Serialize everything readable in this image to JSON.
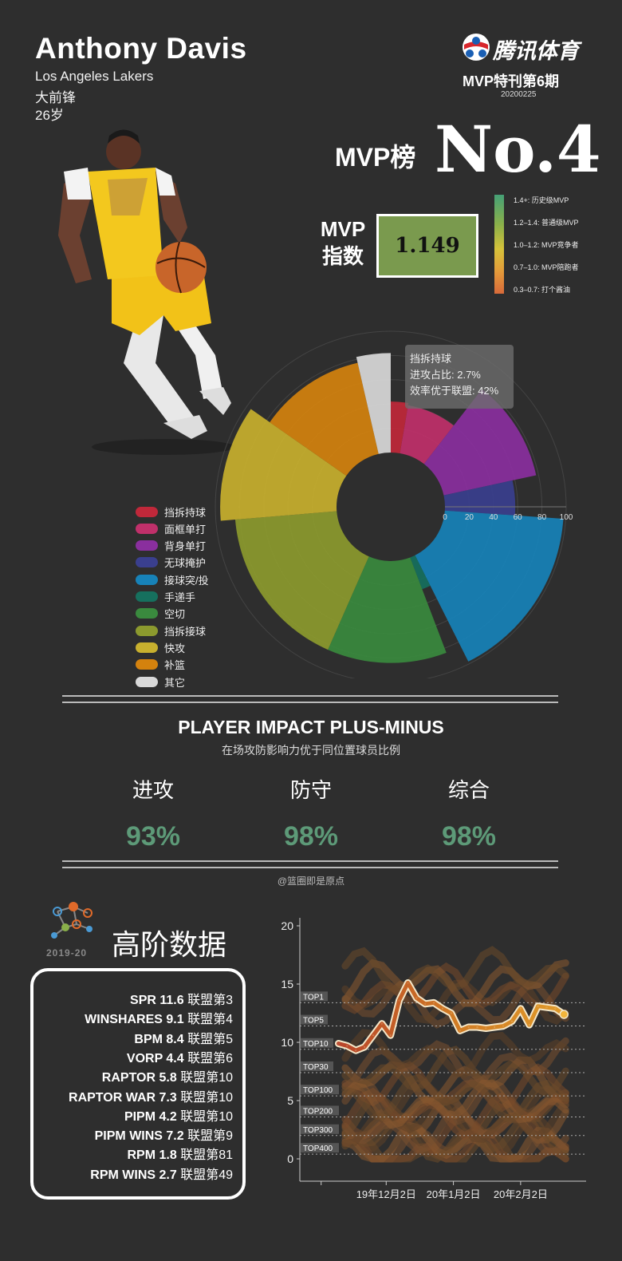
{
  "header": {
    "player_name": "Anthony Davis",
    "team": "Los Angeles Lakers",
    "position": "大前锋",
    "age": "26岁",
    "brand": "腾讯体育",
    "issue": "MVP特刊第6期",
    "date": "20200225"
  },
  "mvp": {
    "rank_label": "MVP榜",
    "rank_value": "No.4",
    "index_label_1": "MVP",
    "index_label_2": "指数",
    "index_value": "1.149",
    "scale": [
      "1.4+: 历史级MVP",
      "1.2–1.4: 普通级MVP",
      "1.0–1.2: MVP竞争者",
      "0.7–1.0: MVP陪跑者",
      "0.3–0.7: 打个酱油"
    ]
  },
  "tooltip": {
    "title": "挡拆持球",
    "line1": "进攻占比: 2.7%",
    "line2": "效率优于联盟: 42%"
  },
  "pipm": {
    "title": "PLAYER IMPACT PLUS-MINUS",
    "subtitle": "在场攻防影响力优于同位置球员比例",
    "offense_label": "进攻",
    "offense_value": "93%",
    "defense_label": "防守",
    "defense_value": "98%",
    "overall_label": "综合",
    "overall_value": "98%",
    "credit": "@篮圈即是原点"
  },
  "advanced": {
    "title": "高阶数据",
    "year": "2019-20",
    "rows": [
      {
        "stat": "SPR 11.6",
        "rank": "联盟第3"
      },
      {
        "stat": "WINSHARES 9.1",
        "rank": "联盟第4"
      },
      {
        "stat": "BPM 8.4",
        "rank": "联盟第5"
      },
      {
        "stat": "VORP 4.4",
        "rank": "联盟第6"
      },
      {
        "stat": "RAPTOR 5.8",
        "rank": "联盟第10"
      },
      {
        "stat": "RAPTOR WAR 7.3",
        "rank": "联盟第10"
      },
      {
        "stat": "PIPM 4.2",
        "rank": "联盟第10"
      },
      {
        "stat": "PIPM WINS 7.2",
        "rank": "联盟第9"
      },
      {
        "stat": "RPM 1.8",
        "rank": "联盟第81"
      },
      {
        "stat": "RPM WINS 2.7",
        "rank": "联盟第49"
      }
    ]
  },
  "chart_data": [
    {
      "type": "polar-bar",
      "radial_axis_ticks": [
        "0",
        "20",
        "40",
        "60",
        "80",
        "100"
      ],
      "radial_range": [
        0,
        100
      ],
      "legend_placement": "bottom-left",
      "categories": [
        "挡拆持球",
        "面框单打",
        "背身单打",
        "无球掩护",
        "接球突/投",
        "手递手",
        "空切",
        "挡拆接球",
        "快攻",
        "补篮",
        "其它"
      ],
      "colors": [
        "#c0283a",
        "#c0306a",
        "#8a2f9e",
        "#3a3f8e",
        "#1782b8",
        "#16705e",
        "#3a8a3e",
        "#8c9a2e",
        "#c8b02e",
        "#d4820e",
        "#d9d9d9"
      ],
      "share": [
        2.7,
        7.8,
        11.1,
        4.5,
        16.5,
        1.6,
        12.4,
        17.1,
        11.0,
        11.7,
        3.6
      ],
      "efficiency": [
        42,
        40,
        78,
        58,
        98,
        28,
        84,
        84,
        96,
        77,
        82
      ]
    },
    {
      "type": "line",
      "y_ticks": [
        "0",
        "5",
        "10",
        "15",
        "20"
      ],
      "ylim": [
        0,
        20
      ],
      "x_ticks": [
        "19年12月2日",
        "20年1月2日",
        "20年2月2日"
      ],
      "reference_lines": [
        {
          "label": "TOP1",
          "y": 13.4
        },
        {
          "label": "TOP5",
          "y": 11.4
        },
        {
          "label": "TOP10",
          "y": 9.4
        },
        {
          "label": "TOP30",
          "y": 7.4
        },
        {
          "label": "TOP100",
          "y": 5.4
        },
        {
          "label": "TOP200",
          "y": 3.6
        },
        {
          "label": "TOP300",
          "y": 2.0
        },
        {
          "label": "TOP400",
          "y": 0.4
        }
      ],
      "x": [
        "2019-11-10",
        "2019-11-14",
        "2019-11-18",
        "2019-11-22",
        "2019-11-26",
        "2019-11-30",
        "2019-12-04",
        "2019-12-08",
        "2019-12-12",
        "2019-12-16",
        "2019-12-20",
        "2019-12-24",
        "2019-12-28",
        "2020-01-01",
        "2020-01-05",
        "2020-01-09",
        "2020-01-13",
        "2020-01-17",
        "2020-01-21",
        "2020-01-25",
        "2020-01-29",
        "2020-02-02",
        "2020-02-06",
        "2020-02-10",
        "2020-02-14",
        "2020-02-18",
        "2020-02-22"
      ],
      "series": [
        {
          "values": [
            9.9,
            9.7,
            9.3,
            9.6,
            10.6,
            11.6,
            10.6,
            13.6,
            15.1,
            13.8,
            13.3,
            13.4,
            12.9,
            12.5,
            11.0,
            11.3,
            11.3,
            11.2,
            11.3,
            11.4,
            11.8,
            12.9,
            11.5,
            13.1,
            13.0,
            12.9,
            12.4
          ]
        }
      ]
    }
  ]
}
